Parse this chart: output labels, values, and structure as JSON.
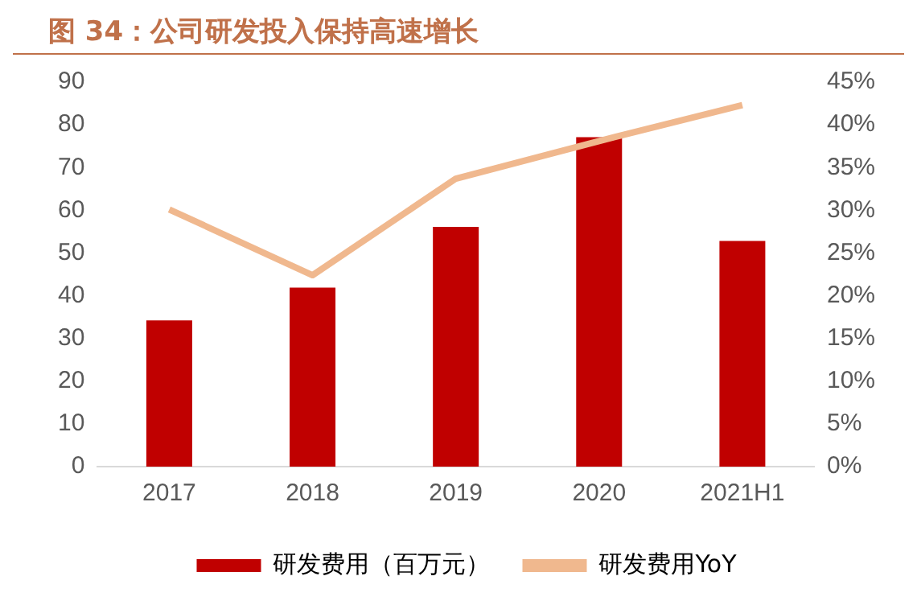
{
  "chart_data": {
    "type": "bar",
    "title": "图 34：公司研发投入保持高速增长",
    "categories": [
      "2017",
      "2018",
      "2019",
      "2020",
      "2021H1"
    ],
    "series": [
      {
        "name": "研发费用（百万元）",
        "color": "#c00000",
        "values": [
          34.2,
          41.9,
          56.1,
          77.1,
          52.8
        ]
      },
      {
        "name": "研发费用YoY",
        "type": "line",
        "axis": "y2",
        "color": "#f0b88e",
        "marker": "none",
        "values": [
          30.1,
          22.4,
          33.7,
          38.1,
          42.3
        ]
      }
    ],
    "ylim": [
      0,
      90
    ],
    "yticks": [
      0,
      10,
      20,
      30,
      40,
      50,
      60,
      70,
      80,
      90
    ],
    "y2lim": [
      0,
      45
    ],
    "y2ticks": [
      {
        "value": 0,
        "label": "0%"
      },
      {
        "value": 5,
        "label": "5%"
      },
      {
        "value": 10,
        "label": "10%"
      },
      {
        "value": 15,
        "label": "15%"
      },
      {
        "value": 20,
        "label": "20%"
      },
      {
        "value": 25,
        "label": "25%"
      },
      {
        "value": 30,
        "label": "30%"
      },
      {
        "value": 35,
        "label": "35%"
      },
      {
        "value": 40,
        "label": "40%"
      },
      {
        "value": 45,
        "label": "45%"
      }
    ],
    "grid": false,
    "legend": "bottom"
  }
}
